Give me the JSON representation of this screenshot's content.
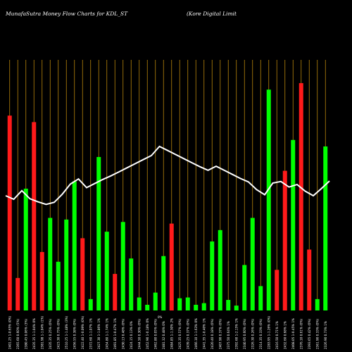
{
  "chart_data": {
    "type": "bar",
    "title": "MunafaSutra  Money Flow  Charts for KDL_ST",
    "subtitle": "(Kore   Digital Limit",
    "overlay_series": {
      "type": "line",
      "values": [
        192,
        188,
        194,
        186,
        182,
        180,
        182,
        189,
        196,
        200,
        193,
        196,
        199,
        202,
        205,
        208,
        211,
        214,
        217,
        220,
        226,
        223,
        220,
        217,
        214,
        211,
        214,
        211,
        208,
        205,
        202,
        196,
        194,
        189,
        192,
        195,
        193,
        189,
        192,
        187,
        183,
        187,
        191,
        197
      ]
    },
    "series": [
      {
        "values": [
          185,
          20,
          195,
          190,
          110,
          30,
          145,
          165,
          110,
          134,
          65,
          175,
          145,
          20,
          30,
          180,
          170,
          135,
          130,
          230,
          65,
          140,
          15,
          75,
          130,
          140,
          170,
          32,
          205,
          150,
          10,
          60,
          120,
          200,
          120,
          135,
          150,
          170,
          240,
          240,
          250,
          185,
          200,
          245
        ]
      },
      {
        "values": [
          240,
          20,
          60,
          230,
          110,
          30,
          145,
          140,
          110,
          140,
          92,
          200,
          155,
          12,
          105,
          35,
          170,
          155,
          90,
          50,
          135,
          90,
          200,
          200,
          175,
          180,
          170,
          90,
          200,
          180,
          220,
          180,
          200,
          170,
          200,
          200,
          205,
          215,
          215,
          240,
          120,
          230,
          200,
          150
        ]
      }
    ],
    "bars": [
      {
        "value": 240,
        "color": "#ff1a1a"
      },
      {
        "value": 40,
        "color": "#ff1a1a"
      },
      {
        "value": 150,
        "color": "#00ff00"
      },
      {
        "value": 232,
        "color": "#ff1a1a"
      },
      {
        "value": 72,
        "color": "#ff1a1a"
      },
      {
        "value": 114,
        "color": "#00ff00"
      },
      {
        "value": 60,
        "color": "#00ff00"
      },
      {
        "value": 112,
        "color": "#00ff00"
      },
      {
        "value": 159,
        "color": "#00ff00"
      },
      {
        "value": 89,
        "color": "#ff1a1a"
      },
      {
        "value": 14,
        "color": "#00ff00"
      },
      {
        "value": 189,
        "color": "#00ff00"
      },
      {
        "value": 97,
        "color": "#00ff00"
      },
      {
        "value": 45,
        "color": "#ff1a1a"
      },
      {
        "value": 109,
        "color": "#00ff00"
      },
      {
        "value": 64,
        "color": "#00ff00"
      },
      {
        "value": 16,
        "color": "#00ff00"
      },
      {
        "value": 7,
        "color": "#00ff00"
      },
      {
        "value": 22,
        "color": "#00ff00"
      },
      {
        "value": 67,
        "color": "#00ff00"
      },
      {
        "value": 107,
        "color": "#ff1a1a"
      },
      {
        "value": 15,
        "color": "#00ff00"
      },
      {
        "value": 16,
        "color": "#00ff00"
      },
      {
        "value": 7,
        "color": "#00ff00"
      },
      {
        "value": 9,
        "color": "#00ff00"
      },
      {
        "value": 85,
        "color": "#00ff00"
      },
      {
        "value": 99,
        "color": "#00ff00"
      },
      {
        "value": 13,
        "color": "#00ff00"
      },
      {
        "value": 6,
        "color": "#00ff00"
      },
      {
        "value": 56,
        "color": "#00ff00"
      },
      {
        "value": 114,
        "color": "#00ff00"
      },
      {
        "value": 30,
        "color": "#00ff00"
      },
      {
        "value": 272,
        "color": "#00ff00"
      },
      {
        "value": 50,
        "color": "#ff1a1a"
      },
      {
        "value": 172,
        "color": "#ff1a1a"
      },
      {
        "value": 210,
        "color": "#00ff00"
      },
      {
        "value": 280,
        "color": "#ff1a1a"
      },
      {
        "value": 75,
        "color": "#ff1a1a"
      },
      {
        "value": 14,
        "color": "#00ff00"
      },
      {
        "value": 202,
        "color": "#00ff00"
      }
    ],
    "line_values": [
      238,
      231,
      248,
      232,
      226,
      221,
      225,
      241,
      261,
      271,
      254,
      262,
      270,
      277,
      285,
      293,
      301,
      309,
      317,
      335,
      327,
      319,
      311,
      303,
      295,
      288,
      296,
      288,
      280,
      272,
      265,
      250,
      240,
      263,
      266,
      255,
      260,
      247,
      238,
      252,
      267
    ],
    "x_tick_labels": [
      "2401.25 1-0.65% (0%)",
      "2365.60 0.60% (5%)",
      "2380.45 0.06% (3%)",
      "2435.35 1-1.04% 0%",
      "2381.98 1-1.04% (1%)",
      "2435.35 0.25% (0%)",
      "2423.30 0.75% (0%)",
      "2510.25 1-1.48% (3%)",
      "2456.55 0.38% (0%)",
      "2422.40 1-0.09% (0%)",
      "2372.60 1-1.07% 1%",
      "2427.30 1-1.86% 1%",
      "2454.80 1-1.74% 1%",
      "2491.85 1-0.47% 1%",
      "2430.13 0.48% (0%)",
      "2424.15 0.13% 0%",
      "2444.50 0.30% (0%)",
      "2452.90 1-0.18% 0%",
      "2462.80 0.05% (0%)",
      "2481.32 0.48% 0%",
      "2484.85 1-1.30% 2%",
      "2425.35 0.57% (0%)",
      "2439.25 0.37% (0%)",
      "2466.10 1-1.63% 0%",
      "2441.35 1-0.40% 1%",
      "2420.40 0.18% (0%)",
      "2407.90 0.37% (0%)",
      "2375.50 0.64% 1%",
      "2392.60 1-2.15% 1%",
      "2340.95 0.60% (0%)",
      "2326.30 0.26% (0%)",
      "2314.35 0.33% (0%)",
      "2283.95 1-1.26% (0%)",
      "2416.50 0.71% 1%",
      "2432.60 0.68% 1%",
      "2408.05 1-0.45% 1%",
      "2376.10 0.61% (0%)",
      "2393.65 0.42% (0%)",
      "2361.90 0.33% (0%)",
      "2326.90 0.73% 1%"
    ],
    "x_tick_labels_display": [
      "1026.55 1-0.40% 0%",
      "1026.55 1-0.40% 0%"
    ],
    "extra_tick_label": "0%"
  }
}
